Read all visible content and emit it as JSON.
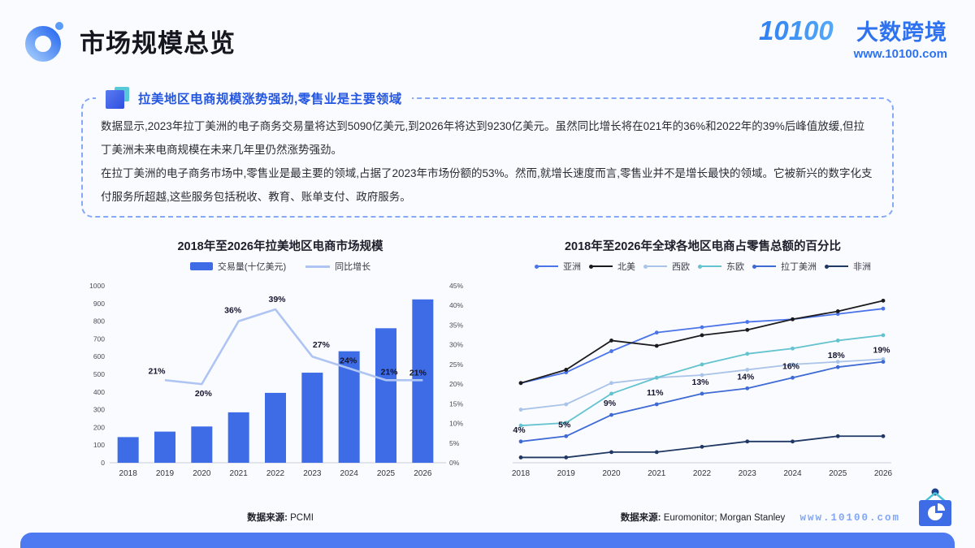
{
  "page": {
    "title": "市场规模总览",
    "brand": {
      "logo_text": "10100",
      "name": "大数跨境",
      "url": "www.10100.com"
    },
    "footer_url": "www.10100.com"
  },
  "summary": {
    "heading": "拉美地区电商规模涨势强劲,零售业是主要领域",
    "paragraphs": [
      "数据显示,2023年拉丁美洲的电子商务交易量将达到5090亿美元,到2026年将达到9230亿美元。虽然同比增长将在021年的36%和2022年的39%后峰值放缓,但拉丁美洲未来电商规模在未来几年里仍然涨势强劲。",
      "在拉丁美洲的电子商务市场中,零售业是最主要的领域,占据了2023年市场份额的53%。然而,就增长速度而言,零售业并不是增长最快的领域。它被新兴的数字化支付服务所超越,这些服务包括税收、教育、账单支付、政府服务。"
    ]
  },
  "sources": {
    "prefix": "数据来源:",
    "left": "PCMI",
    "right": "Euromonitor; Morgan Stanley"
  },
  "chart_data": [
    {
      "type": "bar",
      "title": "2018年至2026年拉美地区电商市场规模",
      "categories": [
        "2018",
        "2019",
        "2020",
        "2021",
        "2022",
        "2023",
        "2024",
        "2025",
        "2026"
      ],
      "bar_series": {
        "name": "交易量(十亿美元)",
        "color": "#3D6CE6",
        "values": [
          145,
          176,
          205,
          285,
          395,
          509,
          630,
          760,
          923
        ]
      },
      "line_series": {
        "name": "同比增长",
        "color": "#AEC4F2",
        "values": [
          null,
          21,
          20,
          36,
          39,
          27,
          24,
          21,
          21
        ],
        "labels": [
          "",
          "21%",
          "20%",
          "36%",
          "39%",
          "27%",
          "24%",
          "21%",
          "21%"
        ]
      },
      "y_left": {
        "min": 0,
        "max": 1000,
        "step": 100
      },
      "y_right": {
        "min": 0,
        "max": 45,
        "step": 5,
        "suffix": "%"
      },
      "legend_position": "top",
      "grid": false
    },
    {
      "type": "line",
      "title": "2018年至2026年全球各地区电商占零售总额的百分比",
      "categories": [
        "2018",
        "2019",
        "2020",
        "2021",
        "2022",
        "2023",
        "2024",
        "2025",
        "2026"
      ],
      "series": [
        {
          "name": "亚洲",
          "color": "#4A74E8",
          "values": [
            15,
            17,
            21,
            24.5,
            25.5,
            26.5,
            27,
            28,
            29
          ]
        },
        {
          "name": "北美",
          "color": "#1B1B1F",
          "values": [
            15,
            17.5,
            23,
            22,
            24,
            25,
            27,
            28.5,
            30.5
          ]
        },
        {
          "name": "西欧",
          "color": "#A9C4E8",
          "values": [
            10,
            11,
            15,
            16,
            16.5,
            17.5,
            18.5,
            19,
            19.5
          ]
        },
        {
          "name": "东欧",
          "color": "#63C3CF",
          "values": [
            7,
            7.5,
            13,
            16,
            18.5,
            20.5,
            21.5,
            23,
            24
          ]
        },
        {
          "name": "拉丁美洲",
          "color": "#3E6AD4",
          "values": [
            4,
            5,
            9,
            11,
            13,
            14,
            16,
            18,
            19
          ],
          "labels": [
            "4%",
            "5%",
            "9%",
            "11%",
            "13%",
            "14%",
            "16%",
            "18%",
            "19%"
          ]
        },
        {
          "name": "非洲",
          "color": "#1F3864",
          "values": [
            1,
            1,
            2,
            2,
            3,
            4,
            4,
            5,
            5
          ]
        }
      ],
      "ylim": [
        0,
        33
      ],
      "legend_position": "top",
      "grid": false
    }
  ]
}
